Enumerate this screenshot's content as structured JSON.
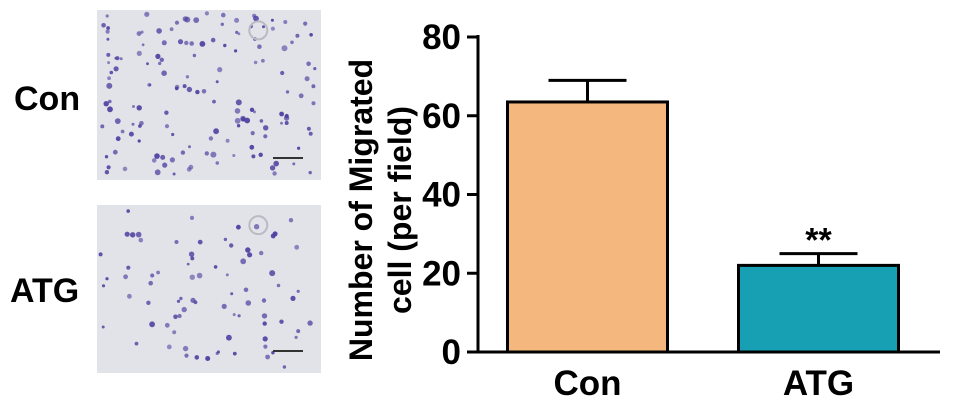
{
  "panels": {
    "con_label": "Con",
    "atg_label": "ATG",
    "cell_stain_color": "#4b3fa0",
    "background_color": "#e2e3e8"
  },
  "chart_data": {
    "type": "bar",
    "categories": [
      "Con",
      "ATG"
    ],
    "values": [
      63.5,
      22
    ],
    "errors": [
      5.5,
      3
    ],
    "bar_colors": [
      "#f4b77e",
      "#17a0b4"
    ],
    "annotations": [
      "",
      "**"
    ],
    "ylabel_line1": "Number of Migrated",
    "ylabel_line2": "cell (per field)",
    "ylim": [
      0,
      80
    ],
    "yticks": [
      0,
      20,
      40,
      60,
      80
    ],
    "grid": false,
    "legend": "none"
  }
}
